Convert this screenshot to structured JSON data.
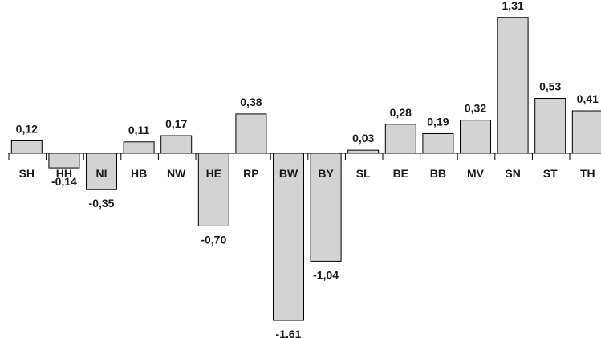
{
  "chart_data": {
    "type": "bar",
    "categories": [
      "SH",
      "HH",
      "NI",
      "HB",
      "NW",
      "HE",
      "RP",
      "BW",
      "BY",
      "SL",
      "BE",
      "BB",
      "MV",
      "SN",
      "ST",
      "TH"
    ],
    "values": [
      0.12,
      -0.14,
      -0.35,
      0.11,
      0.17,
      -0.7,
      0.38,
      -1.61,
      -1.04,
      0.03,
      0.28,
      0.19,
      0.32,
      1.31,
      0.53,
      0.41
    ],
    "value_labels": [
      "0,12",
      "-0,14",
      "-0,35",
      "0,11",
      "0,17",
      "-0,70",
      "0,38",
      "-1,61",
      "-1,04",
      "0,03",
      "0,28",
      "0,19",
      "0,32",
      "1,31",
      "0,53",
      "0,41"
    ],
    "highlighted_categories": [
      "NI",
      "HE",
      "BW",
      "BY"
    ],
    "title": "",
    "xlabel": "",
    "ylabel": "",
    "ylim": [
      -1.61,
      1.31
    ],
    "grid": false,
    "colors": {
      "bar_fill": "#d3d3d3",
      "bar_stroke": "#000000",
      "text": "#1a1a1a"
    }
  }
}
